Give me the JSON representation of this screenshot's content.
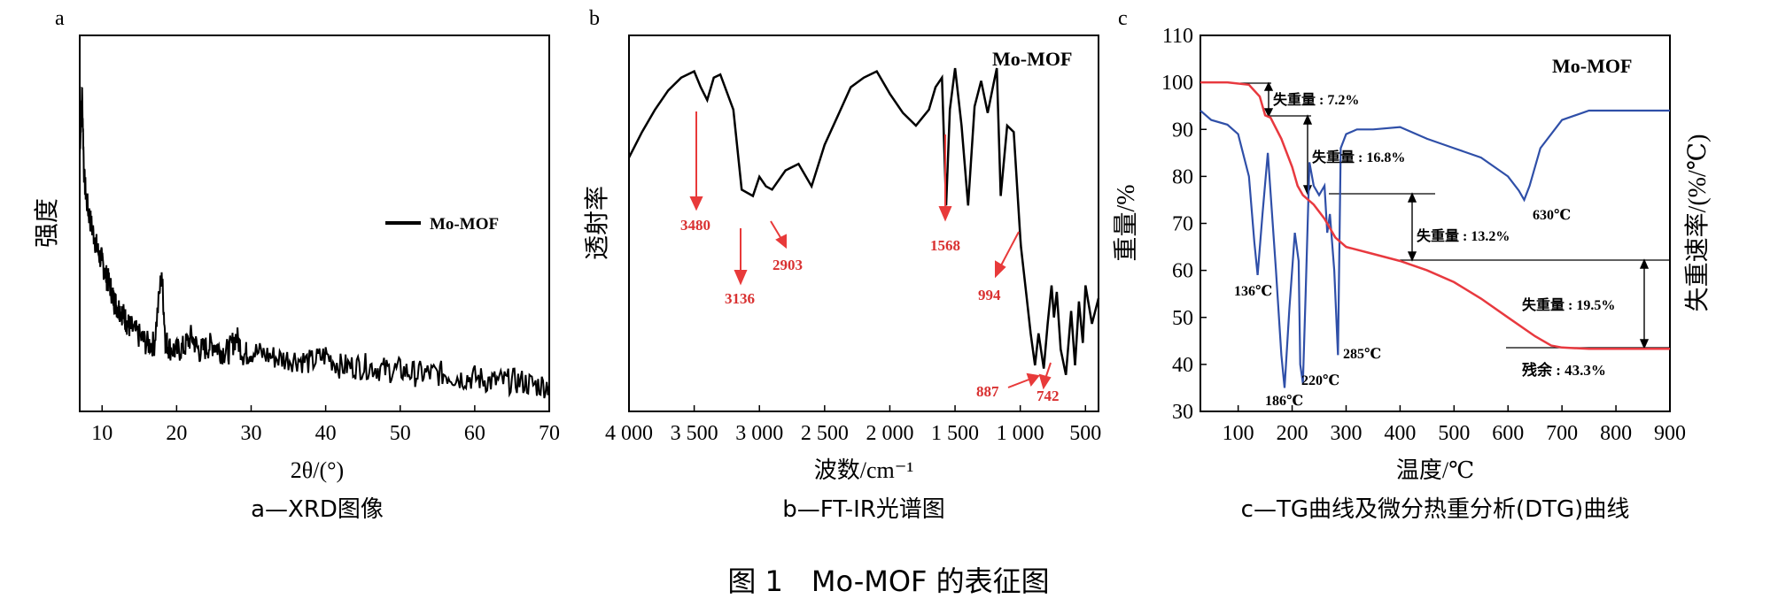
{
  "figure_title": "图 1　Mo-MOF 的表征图",
  "chart_data": [
    {
      "id": "a",
      "type": "line",
      "panel_label": "a",
      "caption": "a—XRD图像",
      "xlabel": "2θ/(°)",
      "ylabel": "强度",
      "xlim": [
        7,
        70
      ],
      "ylim": [
        0,
        1
      ],
      "xticks": [
        10,
        20,
        30,
        40,
        50,
        60,
        70
      ],
      "xtick_labels": [
        "10",
        "20",
        "30",
        "40",
        "50",
        "60",
        "70"
      ],
      "yticks_shown": false,
      "legend": {
        "position": "right",
        "entries": [
          "Mo-MOF"
        ]
      },
      "series": [
        {
          "name": "Mo-MOF",
          "color": "#000000",
          "x": [
            7,
            7.3,
            7.6,
            8,
            8.5,
            9,
            9.5,
            10,
            10.5,
            11,
            11.5,
            12,
            12.5,
            13,
            13.5,
            14,
            15,
            16,
            17,
            18,
            18.5,
            19,
            20,
            21,
            22,
            23,
            24,
            25,
            26,
            27,
            28,
            29,
            30,
            32,
            34,
            36,
            38,
            40,
            42,
            44,
            46,
            48,
            50,
            52,
            54,
            56,
            58,
            60,
            62,
            64,
            66,
            68,
            70
          ],
          "y": [
            0.68,
            0.86,
            0.62,
            0.55,
            0.5,
            0.46,
            0.42,
            0.4,
            0.36,
            0.34,
            0.3,
            0.28,
            0.27,
            0.25,
            0.23,
            0.22,
            0.2,
            0.18,
            0.18,
            0.37,
            0.19,
            0.17,
            0.16,
            0.17,
            0.2,
            0.16,
            0.17,
            0.18,
            0.16,
            0.16,
            0.2,
            0.15,
            0.16,
            0.15,
            0.14,
            0.14,
            0.13,
            0.15,
            0.12,
            0.12,
            0.12,
            0.11,
            0.11,
            0.1,
            0.1,
            0.1,
            0.09,
            0.09,
            0.08,
            0.08,
            0.08,
            0.07,
            0.07
          ]
        }
      ]
    },
    {
      "id": "b",
      "type": "line",
      "panel_label": "b",
      "caption": "b—FT-IR光谱图",
      "xlabel": "波数/cm⁻¹",
      "ylabel": "透射率",
      "xlim": [
        4000,
        400
      ],
      "ylim": [
        0,
        1
      ],
      "xticks": [
        4000,
        3500,
        3000,
        2500,
        2000,
        1500,
        1000,
        500
      ],
      "xtick_labels": [
        "4 000",
        "3 500",
        "3 000",
        "2 500",
        "2 000",
        "1 500",
        "1 000",
        "500"
      ],
      "yticks_shown": false,
      "inset_title": "Mo-MOF",
      "series": [
        {
          "name": "Mo-MOF",
          "color": "#000000",
          "x": [
            4000,
            3900,
            3800,
            3700,
            3600,
            3500,
            3450,
            3400,
            3350,
            3300,
            3200,
            3136,
            3050,
            3000,
            2950,
            2903,
            2800,
            2700,
            2600,
            2500,
            2400,
            2300,
            2200,
            2100,
            2000,
            1900,
            1800,
            1700,
            1650,
            1600,
            1568,
            1540,
            1500,
            1450,
            1400,
            1350,
            1300,
            1250,
            1200,
            1180,
            1150,
            1100,
            1050,
            1000,
            994,
            950,
            920,
            887,
            860,
            820,
            790,
            760,
            742,
            720,
            690,
            650,
            610,
            580,
            550,
            520,
            500,
            450,
            400
          ],
          "y": [
            0.7,
            0.78,
            0.85,
            0.91,
            0.95,
            0.97,
            0.92,
            0.88,
            0.95,
            0.96,
            0.85,
            0.6,
            0.58,
            0.64,
            0.61,
            0.6,
            0.66,
            0.68,
            0.61,
            0.74,
            0.83,
            0.92,
            0.95,
            0.97,
            0.9,
            0.84,
            0.8,
            0.85,
            0.92,
            0.95,
            0.55,
            0.85,
            0.98,
            0.8,
            0.55,
            0.86,
            0.94,
            0.84,
            0.94,
            0.98,
            0.58,
            0.8,
            0.78,
            0.45,
            0.42,
            0.26,
            0.15,
            0.05,
            0.15,
            0.04,
            0.18,
            0.3,
            0.2,
            0.28,
            0.1,
            0.02,
            0.22,
            0.05,
            0.25,
            0.12,
            0.3,
            0.18,
            0.26
          ]
        }
      ],
      "annotations": [
        {
          "label": "3480",
          "x": 3480
        },
        {
          "label": "3136",
          "x": 3136
        },
        {
          "label": "2903",
          "x": 2903
        },
        {
          "label": "1568",
          "x": 1568
        },
        {
          "label": "994",
          "x": 994
        },
        {
          "label": "887",
          "x": 887
        },
        {
          "label": "742",
          "x": 742
        }
      ]
    },
    {
      "id": "c",
      "type": "line",
      "panel_label": "c",
      "caption": "c—TG曲线及微分热重分析(DTG)曲线",
      "xlabel": "温度/℃",
      "ylabel": "重量/%",
      "ylabel_right": "失重速率/(%/℃)",
      "inset_title": "Mo-MOF",
      "xlim": [
        30,
        900
      ],
      "ylim": [
        30,
        110
      ],
      "xticks": [
        100,
        200,
        300,
        400,
        500,
        600,
        700,
        800,
        900
      ],
      "xtick_labels": [
        "100",
        "200",
        "300",
        "400",
        "500",
        "600",
        "700",
        "800",
        "900"
      ],
      "yticks": [
        30,
        40,
        50,
        60,
        70,
        80,
        90,
        100,
        110
      ],
      "ytick_labels": [
        "30",
        "40",
        "50",
        "60",
        "70",
        "80",
        "90",
        "100",
        "110"
      ],
      "series": [
        {
          "name": "TG",
          "color": "#e8393f",
          "x": [
            30,
            80,
            120,
            140,
            150,
            160,
            180,
            200,
            210,
            220,
            240,
            260,
            280,
            300,
            350,
            400,
            450,
            500,
            550,
            600,
            650,
            680,
            700,
            750,
            800,
            850,
            900
          ],
          "y": [
            100,
            100,
            99.5,
            97,
            93,
            92.5,
            88,
            82,
            78,
            76,
            74,
            71,
            67,
            65,
            63.5,
            62,
            60,
            57.5,
            54,
            50,
            46,
            44,
            43.6,
            43.3,
            43.3,
            43.3,
            43.3
          ]
        },
        {
          "name": "DTG",
          "color": "#2f4fa8",
          "x": [
            30,
            50,
            80,
            100,
            120,
            130,
            136,
            145,
            155,
            170,
            180,
            186,
            195,
            205,
            212,
            215,
            220,
            225,
            232,
            240,
            250,
            260,
            265,
            270,
            278,
            285,
            290,
            300,
            320,
            350,
            400,
            450,
            500,
            550,
            600,
            620,
            630,
            640,
            660,
            700,
            750,
            800,
            850,
            900
          ],
          "y": [
            94,
            92,
            91,
            89,
            80,
            66,
            59,
            72,
            85,
            60,
            42,
            35,
            52,
            68,
            62,
            40,
            36,
            55,
            83,
            78,
            76,
            78,
            68,
            72,
            60,
            42,
            86,
            89,
            90,
            90,
            90.5,
            88,
            86,
            84,
            80,
            77,
            75,
            78,
            86,
            92,
            94,
            94,
            94,
            94
          ]
        }
      ],
      "annotations": [
        {
          "label": "136℃",
          "x": 136,
          "y": 59
        },
        {
          "label": "186℃",
          "x": 186,
          "y": 35
        },
        {
          "label": "220℃",
          "x": 220,
          "y": 36
        },
        {
          "label": "285℃",
          "x": 285,
          "y": 42
        },
        {
          "label": "630℃",
          "x": 630,
          "y": 75
        },
        {
          "label": "失重量 : 7.2%"
        },
        {
          "label": "失重量 : 16.8%"
        },
        {
          "label": "失重量 : 13.2%"
        },
        {
          "label": "失重量 : 19.5%"
        },
        {
          "label": "残余 : 43.3%"
        }
      ]
    }
  ]
}
